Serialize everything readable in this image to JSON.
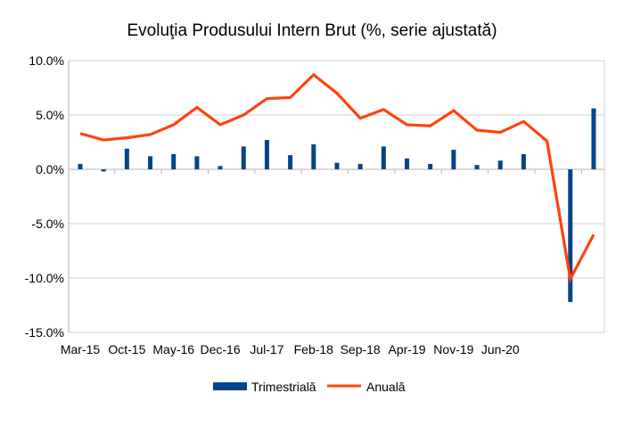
{
  "chart_data": {
    "type": "bar+line",
    "title": "Evoluţia Produsului Intern Brut (%, serie ajustată)",
    "xlabel": "",
    "ylabel": "",
    "categories": [
      "Mar-15",
      "",
      "Oct-15",
      "",
      "May-16",
      "",
      "Dec-16",
      "",
      "Jul-17",
      "",
      "Feb-18",
      "",
      "Sep-18",
      "",
      "Apr-19",
      "",
      "Nov-19",
      "",
      "Jun-20",
      "",
      "",
      "",
      ""
    ],
    "tick_labels": [
      "Mar-15",
      "Oct-15",
      "May-16",
      "Dec-16",
      "Jul-17",
      "Feb-18",
      "Sep-18",
      "Apr-19",
      "Nov-19",
      "Jun-20"
    ],
    "ylim": [
      -15,
      10
    ],
    "yticks": [
      10,
      5,
      0,
      -5,
      -10,
      -15
    ],
    "ytick_labels": [
      "10.0%",
      "5.0%",
      "0.0%",
      "-5.0%",
      "-10.0%",
      "-15.0%"
    ],
    "grid": true,
    "legend": "bottom",
    "series": [
      {
        "name": "Trimestrială",
        "type": "bar",
        "color": "#004586",
        "values": [
          0.5,
          -0.2,
          1.9,
          1.2,
          1.4,
          1.2,
          0.3,
          2.1,
          2.7,
          1.3,
          2.3,
          0.6,
          0.5,
          2.1,
          1.0,
          0.5,
          1.8,
          0.4,
          0.8,
          1.4,
          0.0,
          -12.2,
          5.6
        ]
      },
      {
        "name": "Anuală",
        "type": "line",
        "color": "#ff420e",
        "values": [
          3.3,
          2.7,
          2.9,
          3.2,
          4.1,
          5.7,
          4.1,
          5.0,
          6.5,
          6.6,
          8.7,
          7.0,
          4.7,
          5.5,
          4.1,
          4.0,
          5.4,
          3.6,
          3.4,
          4.4,
          2.6,
          -10.1,
          -6.0
        ]
      }
    ]
  }
}
